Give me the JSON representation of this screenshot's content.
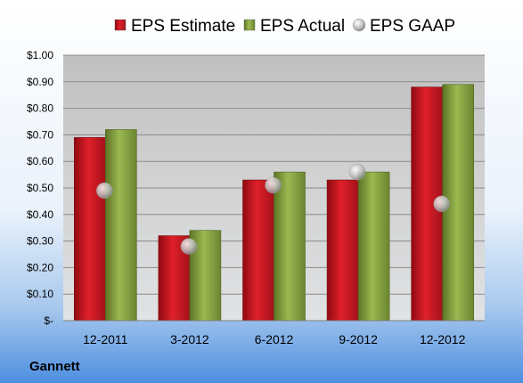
{
  "chart_data": {
    "type": "bar",
    "categories": [
      "12-2011",
      "3-2012",
      "6-2012",
      "9-2012",
      "12-2012"
    ],
    "series": [
      {
        "name": "EPS Estimate",
        "kind": "bar",
        "color": "#c8141c",
        "values": [
          0.69,
          0.32,
          0.53,
          0.53,
          0.88
        ]
      },
      {
        "name": "EPS Actual",
        "kind": "bar",
        "color": "#7e9a37",
        "values": [
          0.72,
          0.34,
          0.56,
          0.56,
          0.89
        ]
      },
      {
        "name": "EPS GAAP",
        "kind": "marker",
        "color": "#b8b8b8",
        "values": [
          0.49,
          0.28,
          0.51,
          0.56,
          0.44
        ]
      }
    ],
    "y_ticks": [
      "$-",
      "$0.10",
      "$0.20",
      "$0.30",
      "$0.40",
      "$0.50",
      "$0.60",
      "$0.70",
      "$0.80",
      "$0.90",
      "$1.00"
    ],
    "ylim": [
      0,
      1.0
    ],
    "grid": true,
    "legend_position": "top",
    "title": "",
    "xlabel": "",
    "ylabel": ""
  },
  "company": "Gannett"
}
